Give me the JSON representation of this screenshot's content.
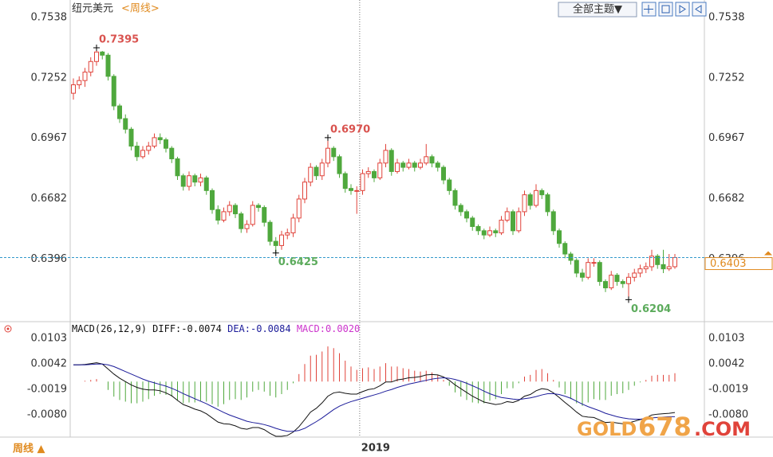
{
  "chart_data": [
    {
      "type": "candlestick",
      "title": "纽元美元",
      "subtitle": "<周线>",
      "up_color": "#e0433a",
      "down_color": "#4fa83d",
      "candles": [
        [
          0.718,
          0.725,
          0.715,
          0.722
        ],
        [
          0.722,
          0.726,
          0.72,
          0.724
        ],
        [
          0.724,
          0.73,
          0.721,
          0.728
        ],
        [
          0.728,
          0.735,
          0.726,
          0.733
        ],
        [
          0.733,
          0.7395,
          0.731,
          0.7375
        ],
        [
          0.7375,
          0.738,
          0.734,
          0.736
        ],
        [
          0.736,
          0.737,
          0.724,
          0.726
        ],
        [
          0.726,
          0.727,
          0.71,
          0.712
        ],
        [
          0.712,
          0.713,
          0.704,
          0.706
        ],
        [
          0.706,
          0.708,
          0.699,
          0.701
        ],
        [
          0.701,
          0.702,
          0.691,
          0.693
        ],
        [
          0.693,
          0.695,
          0.686,
          0.688
        ],
        [
          0.688,
          0.693,
          0.687,
          0.691
        ],
        [
          0.691,
          0.695,
          0.689,
          0.693
        ],
        [
          0.693,
          0.699,
          0.692,
          0.697
        ],
        [
          0.697,
          0.699,
          0.694,
          0.696
        ],
        [
          0.696,
          0.697,
          0.69,
          0.692
        ],
        [
          0.692,
          0.693,
          0.685,
          0.687
        ],
        [
          0.687,
          0.688,
          0.677,
          0.679
        ],
        [
          0.679,
          0.68,
          0.672,
          0.674
        ],
        [
          0.674,
          0.681,
          0.672,
          0.679
        ],
        [
          0.679,
          0.68,
          0.674,
          0.676
        ],
        [
          0.676,
          0.68,
          0.674,
          0.678
        ],
        [
          0.678,
          0.679,
          0.67,
          0.672
        ],
        [
          0.672,
          0.673,
          0.661,
          0.663
        ],
        [
          0.663,
          0.665,
          0.656,
          0.658
        ],
        [
          0.658,
          0.664,
          0.657,
          0.662
        ],
        [
          0.662,
          0.667,
          0.66,
          0.665
        ],
        [
          0.665,
          0.666,
          0.659,
          0.661
        ],
        [
          0.661,
          0.662,
          0.652,
          0.654
        ],
        [
          0.654,
          0.658,
          0.652,
          0.656
        ],
        [
          0.656,
          0.667,
          0.655,
          0.665
        ],
        [
          0.665,
          0.666,
          0.662,
          0.664
        ],
        [
          0.664,
          0.665,
          0.655,
          0.657
        ],
        [
          0.657,
          0.658,
          0.646,
          0.648
        ],
        [
          0.648,
          0.65,
          0.6425,
          0.646
        ],
        [
          0.646,
          0.653,
          0.644,
          0.651
        ],
        [
          0.651,
          0.654,
          0.649,
          0.652
        ],
        [
          0.652,
          0.661,
          0.65,
          0.659
        ],
        [
          0.659,
          0.67,
          0.657,
          0.668
        ],
        [
          0.668,
          0.678,
          0.666,
          0.676
        ],
        [
          0.676,
          0.685,
          0.674,
          0.683
        ],
        [
          0.683,
          0.684,
          0.677,
          0.679
        ],
        [
          0.679,
          0.687,
          0.677,
          0.685
        ],
        [
          0.685,
          0.697,
          0.683,
          0.692
        ],
        [
          0.692,
          0.693,
          0.686,
          0.688
        ],
        [
          0.688,
          0.689,
          0.678,
          0.68
        ],
        [
          0.68,
          0.681,
          0.671,
          0.673
        ],
        [
          0.673,
          0.675,
          0.67,
          0.672
        ],
        [
          0.672,
          0.674,
          0.661,
          0.672
        ],
        [
          0.672,
          0.682,
          0.67,
          0.68
        ],
        [
          0.68,
          0.683,
          0.678,
          0.681
        ],
        [
          0.681,
          0.682,
          0.676,
          0.678
        ],
        [
          0.678,
          0.687,
          0.677,
          0.685
        ],
        [
          0.685,
          0.694,
          0.683,
          0.691
        ],
        [
          0.691,
          0.692,
          0.679,
          0.681
        ],
        [
          0.681,
          0.687,
          0.68,
          0.685
        ],
        [
          0.685,
          0.686,
          0.681,
          0.683
        ],
        [
          0.683,
          0.687,
          0.682,
          0.685
        ],
        [
          0.685,
          0.686,
          0.681,
          0.683
        ],
        [
          0.683,
          0.687,
          0.682,
          0.685
        ],
        [
          0.685,
          0.694,
          0.684,
          0.688
        ],
        [
          0.688,
          0.689,
          0.683,
          0.685
        ],
        [
          0.685,
          0.686,
          0.681,
          0.683
        ],
        [
          0.683,
          0.684,
          0.675,
          0.677
        ],
        [
          0.677,
          0.678,
          0.67,
          0.672
        ],
        [
          0.672,
          0.673,
          0.663,
          0.665
        ],
        [
          0.665,
          0.666,
          0.66,
          0.662
        ],
        [
          0.662,
          0.663,
          0.657,
          0.659
        ],
        [
          0.659,
          0.66,
          0.653,
          0.655
        ],
        [
          0.655,
          0.656,
          0.651,
          0.653
        ],
        [
          0.653,
          0.654,
          0.649,
          0.651
        ],
        [
          0.651,
          0.655,
          0.65,
          0.653
        ],
        [
          0.653,
          0.654,
          0.65,
          0.652
        ],
        [
          0.652,
          0.66,
          0.651,
          0.658
        ],
        [
          0.658,
          0.664,
          0.657,
          0.662
        ],
        [
          0.662,
          0.663,
          0.651,
          0.653
        ],
        [
          0.653,
          0.664,
          0.652,
          0.662
        ],
        [
          0.662,
          0.672,
          0.66,
          0.67
        ],
        [
          0.67,
          0.671,
          0.663,
          0.665
        ],
        [
          0.665,
          0.675,
          0.664,
          0.672
        ],
        [
          0.672,
          0.673,
          0.668,
          0.67
        ],
        [
          0.67,
          0.671,
          0.66,
          0.662
        ],
        [
          0.662,
          0.663,
          0.651,
          0.653
        ],
        [
          0.653,
          0.654,
          0.645,
          0.647
        ],
        [
          0.647,
          0.648,
          0.64,
          0.642
        ],
        [
          0.642,
          0.643,
          0.637,
          0.639
        ],
        [
          0.639,
          0.64,
          0.631,
          0.633
        ],
        [
          0.633,
          0.635,
          0.629,
          0.631
        ],
        [
          0.631,
          0.64,
          0.63,
          0.638
        ],
        [
          0.638,
          0.64,
          0.636,
          0.638
        ],
        [
          0.638,
          0.639,
          0.627,
          0.629
        ],
        [
          0.629,
          0.63,
          0.624,
          0.626
        ],
        [
          0.626,
          0.634,
          0.625,
          0.632
        ],
        [
          0.632,
          0.633,
          0.627,
          0.629
        ],
        [
          0.629,
          0.63,
          0.626,
          0.628
        ],
        [
          0.628,
          0.633,
          0.6204,
          0.631
        ],
        [
          0.631,
          0.635,
          0.629,
          0.633
        ],
        [
          0.633,
          0.637,
          0.631,
          0.635
        ],
        [
          0.635,
          0.638,
          0.633,
          0.636
        ],
        [
          0.636,
          0.644,
          0.634,
          0.641
        ],
        [
          0.641,
          0.642,
          0.635,
          0.637
        ],
        [
          0.637,
          0.644,
          0.633,
          0.635
        ],
        [
          0.635,
          0.642,
          0.634,
          0.636
        ],
        [
          0.636,
          0.642,
          0.635,
          0.6403
        ]
      ],
      "ylim": [
        0.6104,
        0.7538
      ],
      "yticks": [
        0.7538,
        0.7252,
        0.6967,
        0.6682,
        0.6396
      ],
      "annotations": [
        {
          "x": 4,
          "y": 0.7395,
          "label": "0.7395",
          "position": "above"
        },
        {
          "x": 44,
          "y": 0.697,
          "label": "0.6970",
          "position": "above"
        },
        {
          "x": 35,
          "y": 0.6425,
          "label": "0.6425",
          "position": "below"
        },
        {
          "x": 96,
          "y": 0.6204,
          "label": "0.6204",
          "position": "below"
        }
      ],
      "x_marker": {
        "x": 49.5,
        "label": "2019"
      }
    },
    {
      "type": "macd",
      "title": "MACD(26,12,9)",
      "ylim": [
        -0.0131,
        0.0132
      ],
      "yticks": [
        0.0103,
        0.0042,
        -0.0019,
        {
          "value": -0.008,
          "label": "-0.0080"
        }
      ],
      "series": [
        {
          "name": "DIFF:",
          "color": "#111111",
          "last_label": "-0.0074",
          "values": [
            0.004,
            0.004,
            0.0041,
            0.0043,
            0.0045,
            0.0042,
            0.003,
            0.0018,
            0.0008,
            0.0,
            -0.0008,
            -0.0014,
            -0.0018,
            -0.002,
            -0.002,
            -0.0022,
            -0.0027,
            -0.0034,
            -0.0045,
            -0.0055,
            -0.006,
            -0.0066,
            -0.007,
            -0.0077,
            -0.0087,
            -0.0097,
            -0.0101,
            -0.0102,
            -0.0106,
            -0.0112,
            -0.0114,
            -0.011,
            -0.011,
            -0.0115,
            -0.0124,
            -0.0131,
            -0.0131,
            -0.0129,
            -0.0121,
            -0.0108,
            -0.0091,
            -0.0073,
            -0.0064,
            -0.0051,
            -0.0035,
            -0.0027,
            -0.0025,
            -0.0028,
            -0.003,
            -0.003,
            -0.0024,
            -0.0019,
            -0.0017,
            -0.001,
            -0.0001,
            -0.0001,
            0.0004,
            0.0006,
            0.0009,
            0.001,
            0.0012,
            0.0016,
            0.0017,
            0.0016,
            0.0011,
            0.0003,
            -0.0008,
            -0.0017,
            -0.0026,
            -0.0035,
            -0.0042,
            -0.0049,
            -0.0052,
            -0.0055,
            -0.0053,
            -0.0048,
            -0.005,
            -0.0045,
            -0.0035,
            -0.0031,
            -0.0022,
            -0.0017,
            -0.0019,
            -0.0027,
            -0.0038,
            -0.005,
            -0.0061,
            -0.0073,
            -0.0083,
            -0.0085,
            -0.0086,
            -0.0092,
            -0.0098,
            -0.0097,
            -0.0099,
            -0.0101,
            -0.0099,
            -0.0095,
            -0.0091,
            -0.0087,
            -0.008,
            -0.0078,
            -0.0077,
            -0.0076,
            -0.0074
          ]
        },
        {
          "name": "DEA:",
          "color": "#1c1c9a",
          "last_label": "-0.0084",
          "values": [
            0.004,
            0.004,
            0.004,
            0.0041,
            0.0042,
            0.0042,
            0.004,
            0.0036,
            0.003,
            0.0024,
            0.0018,
            0.0012,
            0.0006,
            0.0001,
            -0.0003,
            -0.0007,
            -0.0011,
            -0.0016,
            -0.0022,
            -0.0029,
            -0.0035,
            -0.0041,
            -0.0047,
            -0.0053,
            -0.006,
            -0.0067,
            -0.0074,
            -0.008,
            -0.0085,
            -0.009,
            -0.0095,
            -0.0098,
            -0.01,
            -0.0103,
            -0.0107,
            -0.0112,
            -0.0116,
            -0.0119,
            -0.0119,
            -0.0117,
            -0.0112,
            -0.0104,
            -0.0096,
            -0.0087,
            -0.0077,
            -0.0067,
            -0.0059,
            -0.0053,
            -0.0048,
            -0.0044,
            -0.004,
            -0.0036,
            -0.0032,
            -0.0028,
            -0.0023,
            -0.0019,
            -0.0014,
            -0.001,
            -0.0006,
            -0.0003,
            0.0,
            0.0003,
            0.0006,
            0.0008,
            0.0009,
            0.0008,
            0.0005,
            0.0001,
            -0.0004,
            -0.001,
            -0.0016,
            -0.0023,
            -0.0029,
            -0.0034,
            -0.0038,
            -0.004,
            -0.0042,
            -0.0043,
            -0.0041,
            -0.0039,
            -0.0036,
            -0.0032,
            -0.0029,
            -0.0029,
            -0.0031,
            -0.0035,
            -0.004,
            -0.0047,
            -0.0054,
            -0.006,
            -0.0065,
            -0.007,
            -0.0076,
            -0.008,
            -0.0084,
            -0.0087,
            -0.0089,
            -0.009,
            -0.009,
            -0.0089,
            -0.0087,
            -0.0086,
            -0.0085,
            -0.0084,
            -0.0084
          ]
        },
        {
          "name": "MACD:",
          "color": "#cc33cc",
          "last_label": "0.0020",
          "up_color": "#e0433a",
          "down_color": "#4fa83d",
          "values": [
            0.0,
            0.0,
            0.0002,
            0.0004,
            0.0006,
            0.0,
            -0.002,
            -0.0036,
            -0.0044,
            -0.0048,
            -0.0052,
            -0.0052,
            -0.0048,
            -0.0042,
            -0.0034,
            -0.003,
            -0.0032,
            -0.0036,
            -0.0046,
            -0.0052,
            -0.005,
            -0.005,
            -0.0046,
            -0.0048,
            -0.0054,
            -0.006,
            -0.0054,
            -0.0044,
            -0.0042,
            -0.0044,
            -0.0038,
            -0.0024,
            -0.002,
            -0.0024,
            -0.0034,
            -0.0038,
            -0.003,
            -0.002,
            -0.0004,
            0.0018,
            0.0042,
            0.0062,
            0.0064,
            0.0072,
            0.0084,
            0.008,
            0.0068,
            0.005,
            0.0036,
            0.0028,
            0.0032,
            0.0034,
            0.003,
            0.0036,
            0.0044,
            0.0036,
            0.0036,
            0.0032,
            0.003,
            0.0026,
            0.0024,
            0.0026,
            0.0022,
            0.0016,
            0.0004,
            -0.001,
            -0.0026,
            -0.0036,
            -0.0044,
            -0.005,
            -0.0052,
            -0.0052,
            -0.0046,
            -0.0042,
            -0.003,
            -0.0016,
            -0.0016,
            -0.0004,
            0.0012,
            0.0016,
            0.0028,
            0.003,
            0.002,
            0.0004,
            -0.0014,
            -0.003,
            -0.0042,
            -0.0052,
            -0.0058,
            -0.005,
            -0.0042,
            -0.0044,
            -0.0044,
            -0.0034,
            -0.003,
            -0.0028,
            -0.002,
            -0.001,
            -0.0002,
            0.0004,
            0.0014,
            0.0016,
            0.0016,
            0.0016,
            0.002
          ]
        }
      ]
    }
  ],
  "ui": {
    "theme_button": "全部主题▼",
    "period_button": "周线 ▲",
    "watermark": [
      "GOLD",
      "678",
      ".COM"
    ]
  }
}
